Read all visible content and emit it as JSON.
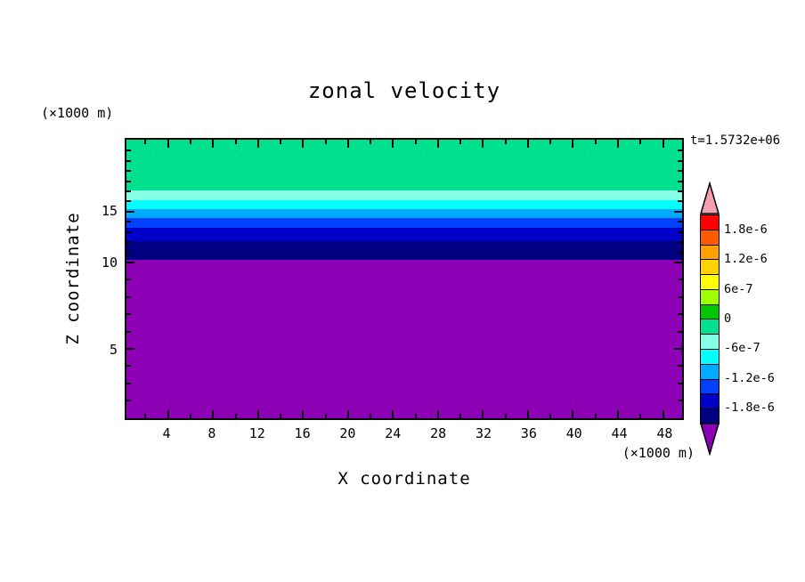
{
  "chart_data": {
    "type": "heatmap",
    "title": "zonal velocity",
    "time_annotation": "t=1.5732e+06",
    "xlabel": "X coordinate",
    "x_unit": "(×1000 m)",
    "ylabel": "Z coordinate",
    "y_unit": "(×1000 m)",
    "x_axis_range": [
      0.3,
      49.7
    ],
    "x_ticks": [
      4,
      8,
      12,
      16,
      20,
      24,
      28,
      32,
      36,
      40,
      44,
      48
    ],
    "x_minor_ticks": [
      2,
      6,
      10,
      14,
      18,
      22,
      26,
      30,
      34,
      38,
      42,
      46
    ],
    "y_ticks": [
      {
        "label": "15",
        "pos_pct": 25.9
      },
      {
        "label": "10",
        "pos_pct": 44.2
      },
      {
        "label": "5",
        "pos_pct": 75.1
      }
    ],
    "y_minor_ticks_pct": [
      3.9,
      7.6,
      11.2,
      14.9,
      18.5,
      22.2,
      29.5,
      33.2,
      36.9,
      40.5,
      50.3,
      56.5,
      62.7,
      68.9,
      81.2,
      87.4,
      93.6
    ],
    "bands": [
      {
        "value_range": "-3e-7 to 0",
        "color": "#00e18f",
        "height_pct": 18.3
      },
      {
        "value_range": "-6e-7 to -3e-7",
        "color": "#85ffe6",
        "height_pct": 3.5
      },
      {
        "value_range": "-9e-7 to -6e-7",
        "color": "#00ffff",
        "height_pct": 3.2
      },
      {
        "value_range": "-1.2e-6 to -9e-7",
        "color": "#00aaff",
        "height_pct": 3.2
      },
      {
        "value_range": "-1.5e-6 to -1.2e-6",
        "color": "#0040ff",
        "height_pct": 3.5
      },
      {
        "value_range": "-1.8e-6 to -1.5e-6",
        "color": "#0000c8",
        "height_pct": 4.7
      },
      {
        "value_range": "-2.1e-6 to -1.8e-6",
        "color": "#000080",
        "height_pct": 6.6
      },
      {
        "value_range": "below -2.1e-6",
        "color": "#8e00b6",
        "height_pct": 57.0
      }
    ],
    "colorbar": {
      "range": [
        "2.1e-6",
        "-2.1e-6"
      ],
      "value_step": "3e-7",
      "tick_labels": [
        "1.8e-6",
        "1.2e-6",
        "6e-7",
        "0",
        "-6e-7",
        "-1.2e-6",
        "-1.8e-6"
      ],
      "segment_colors": [
        "#ff0000",
        "#ff5a00",
        "#ffa000",
        "#ffd200",
        "#ffff00",
        "#a0ff00",
        "#00c800",
        "#00e18f",
        "#85ffe6",
        "#00ffff",
        "#00aaff",
        "#0040ff",
        "#0000c8",
        "#000080"
      ],
      "over_color": "#f4a0b4",
      "under_color": "#8e00b6"
    }
  }
}
